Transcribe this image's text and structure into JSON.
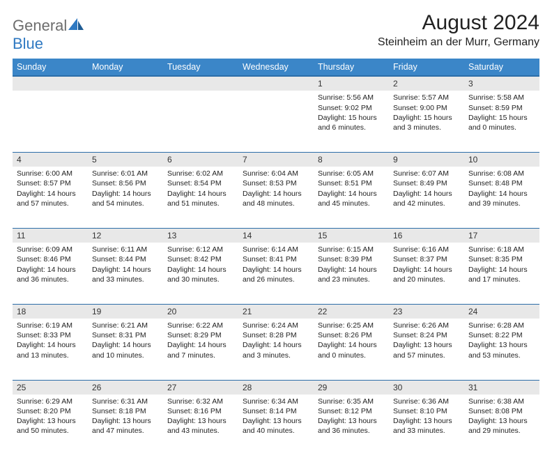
{
  "brand": {
    "name_gray": "General",
    "name_blue": "Blue"
  },
  "title": "August 2024",
  "location": "Steinheim an der Murr, Germany",
  "colors": {
    "header_bg": "#3b86c8",
    "header_border": "#2b6da8",
    "daynum_bg": "#e8e8e8",
    "text": "#222222",
    "logo_gray": "#6d6d6d",
    "logo_blue": "#2f79c2"
  },
  "day_headers": [
    "Sunday",
    "Monday",
    "Tuesday",
    "Wednesday",
    "Thursday",
    "Friday",
    "Saturday"
  ],
  "weeks": [
    [
      {
        "n": "",
        "lines": []
      },
      {
        "n": "",
        "lines": []
      },
      {
        "n": "",
        "lines": []
      },
      {
        "n": "",
        "lines": []
      },
      {
        "n": "1",
        "lines": [
          "Sunrise: 5:56 AM",
          "Sunset: 9:02 PM",
          "Daylight: 15 hours",
          "and 6 minutes."
        ]
      },
      {
        "n": "2",
        "lines": [
          "Sunrise: 5:57 AM",
          "Sunset: 9:00 PM",
          "Daylight: 15 hours",
          "and 3 minutes."
        ]
      },
      {
        "n": "3",
        "lines": [
          "Sunrise: 5:58 AM",
          "Sunset: 8:59 PM",
          "Daylight: 15 hours",
          "and 0 minutes."
        ]
      }
    ],
    [
      {
        "n": "4",
        "lines": [
          "Sunrise: 6:00 AM",
          "Sunset: 8:57 PM",
          "Daylight: 14 hours",
          "and 57 minutes."
        ]
      },
      {
        "n": "5",
        "lines": [
          "Sunrise: 6:01 AM",
          "Sunset: 8:56 PM",
          "Daylight: 14 hours",
          "and 54 minutes."
        ]
      },
      {
        "n": "6",
        "lines": [
          "Sunrise: 6:02 AM",
          "Sunset: 8:54 PM",
          "Daylight: 14 hours",
          "and 51 minutes."
        ]
      },
      {
        "n": "7",
        "lines": [
          "Sunrise: 6:04 AM",
          "Sunset: 8:53 PM",
          "Daylight: 14 hours",
          "and 48 minutes."
        ]
      },
      {
        "n": "8",
        "lines": [
          "Sunrise: 6:05 AM",
          "Sunset: 8:51 PM",
          "Daylight: 14 hours",
          "and 45 minutes."
        ]
      },
      {
        "n": "9",
        "lines": [
          "Sunrise: 6:07 AM",
          "Sunset: 8:49 PM",
          "Daylight: 14 hours",
          "and 42 minutes."
        ]
      },
      {
        "n": "10",
        "lines": [
          "Sunrise: 6:08 AM",
          "Sunset: 8:48 PM",
          "Daylight: 14 hours",
          "and 39 minutes."
        ]
      }
    ],
    [
      {
        "n": "11",
        "lines": [
          "Sunrise: 6:09 AM",
          "Sunset: 8:46 PM",
          "Daylight: 14 hours",
          "and 36 minutes."
        ]
      },
      {
        "n": "12",
        "lines": [
          "Sunrise: 6:11 AM",
          "Sunset: 8:44 PM",
          "Daylight: 14 hours",
          "and 33 minutes."
        ]
      },
      {
        "n": "13",
        "lines": [
          "Sunrise: 6:12 AM",
          "Sunset: 8:42 PM",
          "Daylight: 14 hours",
          "and 30 minutes."
        ]
      },
      {
        "n": "14",
        "lines": [
          "Sunrise: 6:14 AM",
          "Sunset: 8:41 PM",
          "Daylight: 14 hours",
          "and 26 minutes."
        ]
      },
      {
        "n": "15",
        "lines": [
          "Sunrise: 6:15 AM",
          "Sunset: 8:39 PM",
          "Daylight: 14 hours",
          "and 23 minutes."
        ]
      },
      {
        "n": "16",
        "lines": [
          "Sunrise: 6:16 AM",
          "Sunset: 8:37 PM",
          "Daylight: 14 hours",
          "and 20 minutes."
        ]
      },
      {
        "n": "17",
        "lines": [
          "Sunrise: 6:18 AM",
          "Sunset: 8:35 PM",
          "Daylight: 14 hours",
          "and 17 minutes."
        ]
      }
    ],
    [
      {
        "n": "18",
        "lines": [
          "Sunrise: 6:19 AM",
          "Sunset: 8:33 PM",
          "Daylight: 14 hours",
          "and 13 minutes."
        ]
      },
      {
        "n": "19",
        "lines": [
          "Sunrise: 6:21 AM",
          "Sunset: 8:31 PM",
          "Daylight: 14 hours",
          "and 10 minutes."
        ]
      },
      {
        "n": "20",
        "lines": [
          "Sunrise: 6:22 AM",
          "Sunset: 8:29 PM",
          "Daylight: 14 hours",
          "and 7 minutes."
        ]
      },
      {
        "n": "21",
        "lines": [
          "Sunrise: 6:24 AM",
          "Sunset: 8:28 PM",
          "Daylight: 14 hours",
          "and 3 minutes."
        ]
      },
      {
        "n": "22",
        "lines": [
          "Sunrise: 6:25 AM",
          "Sunset: 8:26 PM",
          "Daylight: 14 hours",
          "and 0 minutes."
        ]
      },
      {
        "n": "23",
        "lines": [
          "Sunrise: 6:26 AM",
          "Sunset: 8:24 PM",
          "Daylight: 13 hours",
          "and 57 minutes."
        ]
      },
      {
        "n": "24",
        "lines": [
          "Sunrise: 6:28 AM",
          "Sunset: 8:22 PM",
          "Daylight: 13 hours",
          "and 53 minutes."
        ]
      }
    ],
    [
      {
        "n": "25",
        "lines": [
          "Sunrise: 6:29 AM",
          "Sunset: 8:20 PM",
          "Daylight: 13 hours",
          "and 50 minutes."
        ]
      },
      {
        "n": "26",
        "lines": [
          "Sunrise: 6:31 AM",
          "Sunset: 8:18 PM",
          "Daylight: 13 hours",
          "and 47 minutes."
        ]
      },
      {
        "n": "27",
        "lines": [
          "Sunrise: 6:32 AM",
          "Sunset: 8:16 PM",
          "Daylight: 13 hours",
          "and 43 minutes."
        ]
      },
      {
        "n": "28",
        "lines": [
          "Sunrise: 6:34 AM",
          "Sunset: 8:14 PM",
          "Daylight: 13 hours",
          "and 40 minutes."
        ]
      },
      {
        "n": "29",
        "lines": [
          "Sunrise: 6:35 AM",
          "Sunset: 8:12 PM",
          "Daylight: 13 hours",
          "and 36 minutes."
        ]
      },
      {
        "n": "30",
        "lines": [
          "Sunrise: 6:36 AM",
          "Sunset: 8:10 PM",
          "Daylight: 13 hours",
          "and 33 minutes."
        ]
      },
      {
        "n": "31",
        "lines": [
          "Sunrise: 6:38 AM",
          "Sunset: 8:08 PM",
          "Daylight: 13 hours",
          "and 29 minutes."
        ]
      }
    ]
  ]
}
